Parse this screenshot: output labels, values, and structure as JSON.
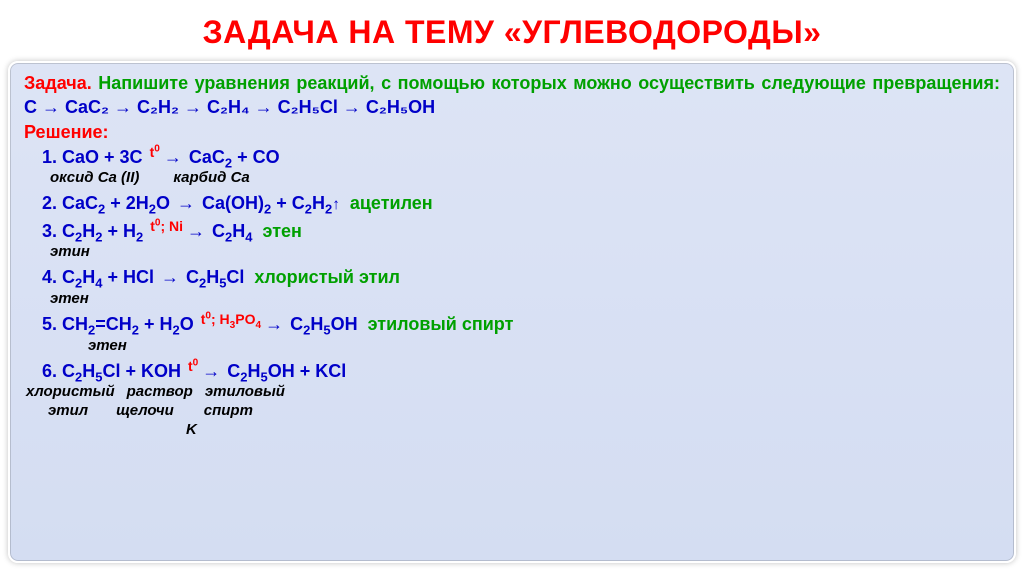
{
  "title": "ЗАДАЧА НА ТЕМУ «УГЛЕВОДОРОДЫ»",
  "prompt": {
    "task_label": "Задача.",
    "task_text": "Напишите уравнения реакций, с помощью которых можно осуществить следующие превращения:",
    "chain": "C → CaC₂ → C₂H₂ → C₂H₄ → C₂H₅Cl → C₂H₅OH"
  },
  "solution_label": "Решение:",
  "steps": [
    {
      "num": "1",
      "left": "CaO + 3C",
      "cond": "t⁰",
      "right": "CaC₂ + CO",
      "product_tag": "",
      "sub_left": "оксид Ca (II)",
      "sub_left_pad": 26,
      "sub_right": "карбид Ca",
      "sub_gap": 34
    },
    {
      "num": "2",
      "left": "CaC₂ + 2H₂O",
      "cond": "",
      "right": "Ca(OH)₂ + C₂H₂↑",
      "product_tag": "ацетилен",
      "sub_left": "",
      "sub_left_pad": 0,
      "sub_right": "",
      "sub_gap": 0
    },
    {
      "num": "3",
      "left": "C₂H₂ + H₂",
      "cond": "t⁰; Ni",
      "right": "C₂H₄",
      "product_tag": "этен",
      "sub_left": "этин",
      "sub_left_pad": 26,
      "sub_right": "",
      "sub_gap": 0
    },
    {
      "num": "4",
      "left": "C₂H₄ + HCl",
      "cond": "",
      "right": "C₂H₅Cl",
      "product_tag": "хлористый этил",
      "sub_left": "этен",
      "sub_left_pad": 26,
      "sub_right": "",
      "sub_gap": 0
    },
    {
      "num": "5",
      "left": "CH₂=CH₂ + H₂O",
      "cond": "t⁰; H₃PO₄",
      "right": "C₂H₅OH",
      "product_tag": "этиловый спирт",
      "sub_left": "этен",
      "sub_left_pad": 64,
      "sub_right": "",
      "sub_gap": 0
    },
    {
      "num": "6",
      "left": "C₂H₅Cl + KOH",
      "cond": "t⁰",
      "right": "C₂H₅OH + KCl",
      "product_tag": "",
      "sub6": {
        "a": "хлористый",
        "a_pad": 2,
        "b": "раствор",
        "b_pad": 12,
        "c": "этиловый",
        "c_pad": 12,
        "a2": "этил",
        "a2_pad": 24,
        "b2": "щелочи",
        "b2_pad": 28,
        "c2": "спирт",
        "c2_pad": 30,
        "b3": "K",
        "b3_pad": 162
      }
    }
  ],
  "colors": {
    "title": "#ff0000",
    "green": "#00a000",
    "blue": "#0000c8",
    "red": "#ff0000",
    "bg_top": "#dde4f5",
    "bg_bottom": "#d4ddf2",
    "page_bg": "#ffffff"
  },
  "fontsize": {
    "title": 32,
    "body": 18,
    "sublabel": 15,
    "cond": 14
  }
}
